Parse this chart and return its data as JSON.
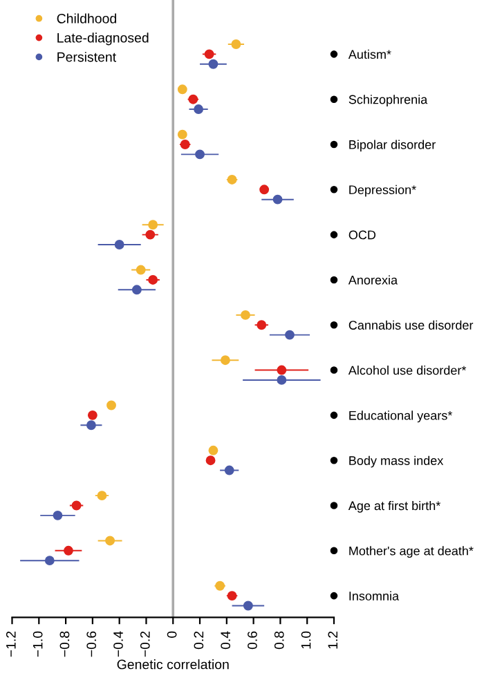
{
  "chart_data": {
    "type": "scatter",
    "orientation": "horizontal",
    "xlabel": "Genetic correlation",
    "categories": [
      "Autism*",
      "Schizophrenia",
      "Bipolar disorder",
      "Depression*",
      "OCD",
      "Anorexia",
      "Cannabis use disorder",
      "Alcohol use disorder*",
      "Educational years*",
      "Body mass index",
      "Age at first birth*",
      "Mother's age at death*",
      "Insomnia"
    ],
    "series": [
      {
        "name": "Childhood",
        "color": "#f2b632",
        "values": [
          0.47,
          0.07,
          0.07,
          0.44,
          -0.15,
          -0.24,
          0.54,
          0.39,
          -0.46,
          0.3,
          -0.53,
          -0.47,
          0.35
        ],
        "errors": [
          0.06,
          0.03,
          0.03,
          0.04,
          0.08,
          0.07,
          0.07,
          0.1,
          0.03,
          0.03,
          0.05,
          0.09,
          0.04
        ]
      },
      {
        "name": "Late-diagnosed",
        "color": "#e0201b",
        "values": [
          0.27,
          0.15,
          0.09,
          0.68,
          -0.17,
          -0.15,
          0.66,
          0.81,
          -0.6,
          0.28,
          -0.72,
          -0.78,
          0.44
        ],
        "errors": [
          0.05,
          0.04,
          0.04,
          0.03,
          0.06,
          0.05,
          0.05,
          0.2,
          0.03,
          0.02,
          0.05,
          0.1,
          0.04
        ]
      },
      {
        "name": "Persistent",
        "color": "#4a5aa8",
        "values": [
          0.3,
          0.19,
          0.2,
          0.78,
          -0.4,
          -0.27,
          0.87,
          0.81,
          -0.61,
          0.42,
          -0.86,
          -0.92,
          0.56
        ],
        "errors": [
          0.1,
          0.07,
          0.14,
          0.12,
          0.16,
          0.14,
          0.15,
          0.29,
          0.08,
          0.07,
          0.13,
          0.22,
          0.12
        ]
      }
    ],
    "xlim": [
      -1.2,
      1.2
    ],
    "xticks": [
      {
        "value": -1.2,
        "label": "−1.2"
      },
      {
        "value": -1.0,
        "label": "−1.0"
      },
      {
        "value": -0.8,
        "label": "−0.8"
      },
      {
        "value": -0.6,
        "label": "−0.6"
      },
      {
        "value": -0.4,
        "label": "−0.4"
      },
      {
        "value": -0.2,
        "label": "−0.2"
      },
      0,
      0.2,
      0.4,
      0.6,
      0.8,
      {
        "value": 1,
        "label": "1.0"
      },
      1.2
    ],
    "ref_lines": [
      {
        "axis": "x",
        "value": 0,
        "color": "#aaaaaa"
      }
    ],
    "marker": "circle",
    "legend": "top left",
    "grid": false
  }
}
